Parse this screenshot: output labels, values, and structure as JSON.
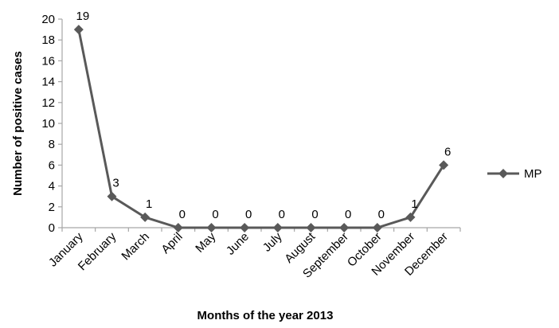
{
  "chart_data": {
    "type": "line",
    "categories": [
      "January",
      "February",
      "March",
      "April",
      "May",
      "June",
      "July",
      "August",
      "September",
      "October",
      "November",
      "December"
    ],
    "series": [
      {
        "name": "MP",
        "values": [
          19,
          3,
          1,
          0,
          0,
          0,
          0,
          0,
          0,
          0,
          1,
          6
        ],
        "color": "#595959",
        "marker": "diamond"
      }
    ],
    "data_labels": [
      "19",
      "3",
      "1",
      "0",
      "0",
      "0",
      "0",
      "0",
      "0",
      "0",
      "1",
      "6"
    ],
    "xlabel": "Months of the year 2013",
    "ylabel": "Number of positive cases",
    "ylim": [
      0,
      20
    ],
    "yticks": [
      0,
      2,
      4,
      6,
      8,
      10,
      12,
      14,
      16,
      18,
      20
    ],
    "ytick_labels": [
      "0",
      "2",
      "4",
      "6",
      "8",
      "10",
      "12",
      "14",
      "16",
      "18",
      "20"
    ],
    "grid": false,
    "legend_position": "right",
    "axis_color": "#a6a6a6"
  }
}
